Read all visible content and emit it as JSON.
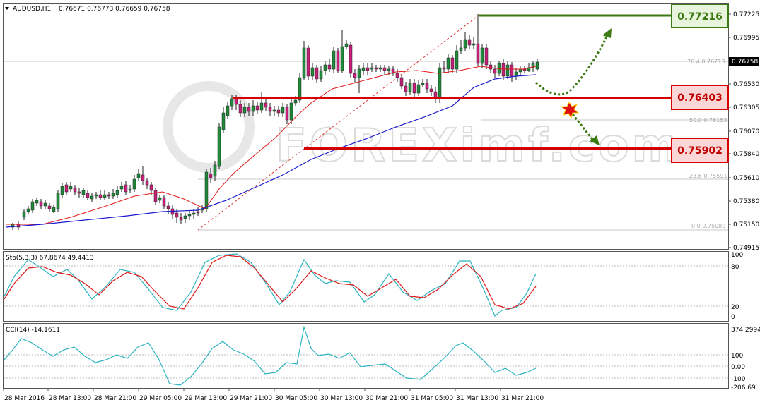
{
  "header": {
    "symbol": "AUDUSD,H1",
    "ohlc": "0.76671 0.76773 0.76659 0.76758"
  },
  "watermark": "FOREXimf.com",
  "colors": {
    "bull_candle": "#1f8a3a",
    "bear_candle": "#c8207a",
    "ma_fast": "#e01818",
    "ma_slow": "#1a1ad0",
    "level_red": "#d40000",
    "level_green": "#3c7a14",
    "stoch_main": "#2ab3c0",
    "stoch_signal": "#e01818",
    "cci": "#2ab3c0"
  },
  "chart_data": {
    "type": "candlestick",
    "y_ticks": [
      "0.77225",
      "0.76995",
      "0.76760",
      "0.76530",
      "0.76305",
      "0.76070",
      "0.75840",
      "0.75610",
      "0.75380",
      "0.75150",
      "0.74915"
    ],
    "current_price": "0.76758",
    "x_labels": [
      "28 Mar 2016",
      "28 Mar 13:00",
      "28 Mar 21:00",
      "29 Mar 05:00",
      "29 Mar 13:00",
      "29 Mar 21:00",
      "30 Mar 05:00",
      "30 Mar 13:00",
      "30 Mar 21:00",
      "31 Mar 05:00",
      "31 Mar 13:00",
      "31 Mar 21:00"
    ],
    "fib_levels": [
      {
        "label": "76.4",
        "value": "0.76713"
      },
      {
        "label": "50.0",
        "value": "0.76153"
      },
      {
        "label": "23.6",
        "value": "0.75591"
      },
      {
        "label": "0.0",
        "value": "0.75089"
      }
    ],
    "levels": [
      {
        "name": "resistance",
        "value": "0.77216"
      },
      {
        "name": "support-1",
        "value": "0.76403"
      },
      {
        "name": "support-2",
        "value": "0.75902"
      }
    ],
    "stochastic": {
      "label": "Sto(5,3,3) 67.8674 49.4413",
      "ticks": [
        "100",
        "80",
        "20",
        "0"
      ]
    },
    "cci": {
      "label": "CCI(14) -14.1611",
      "ticks": [
        "374.2994",
        "100",
        "0.00",
        "-100",
        "-206.69"
      ]
    }
  }
}
